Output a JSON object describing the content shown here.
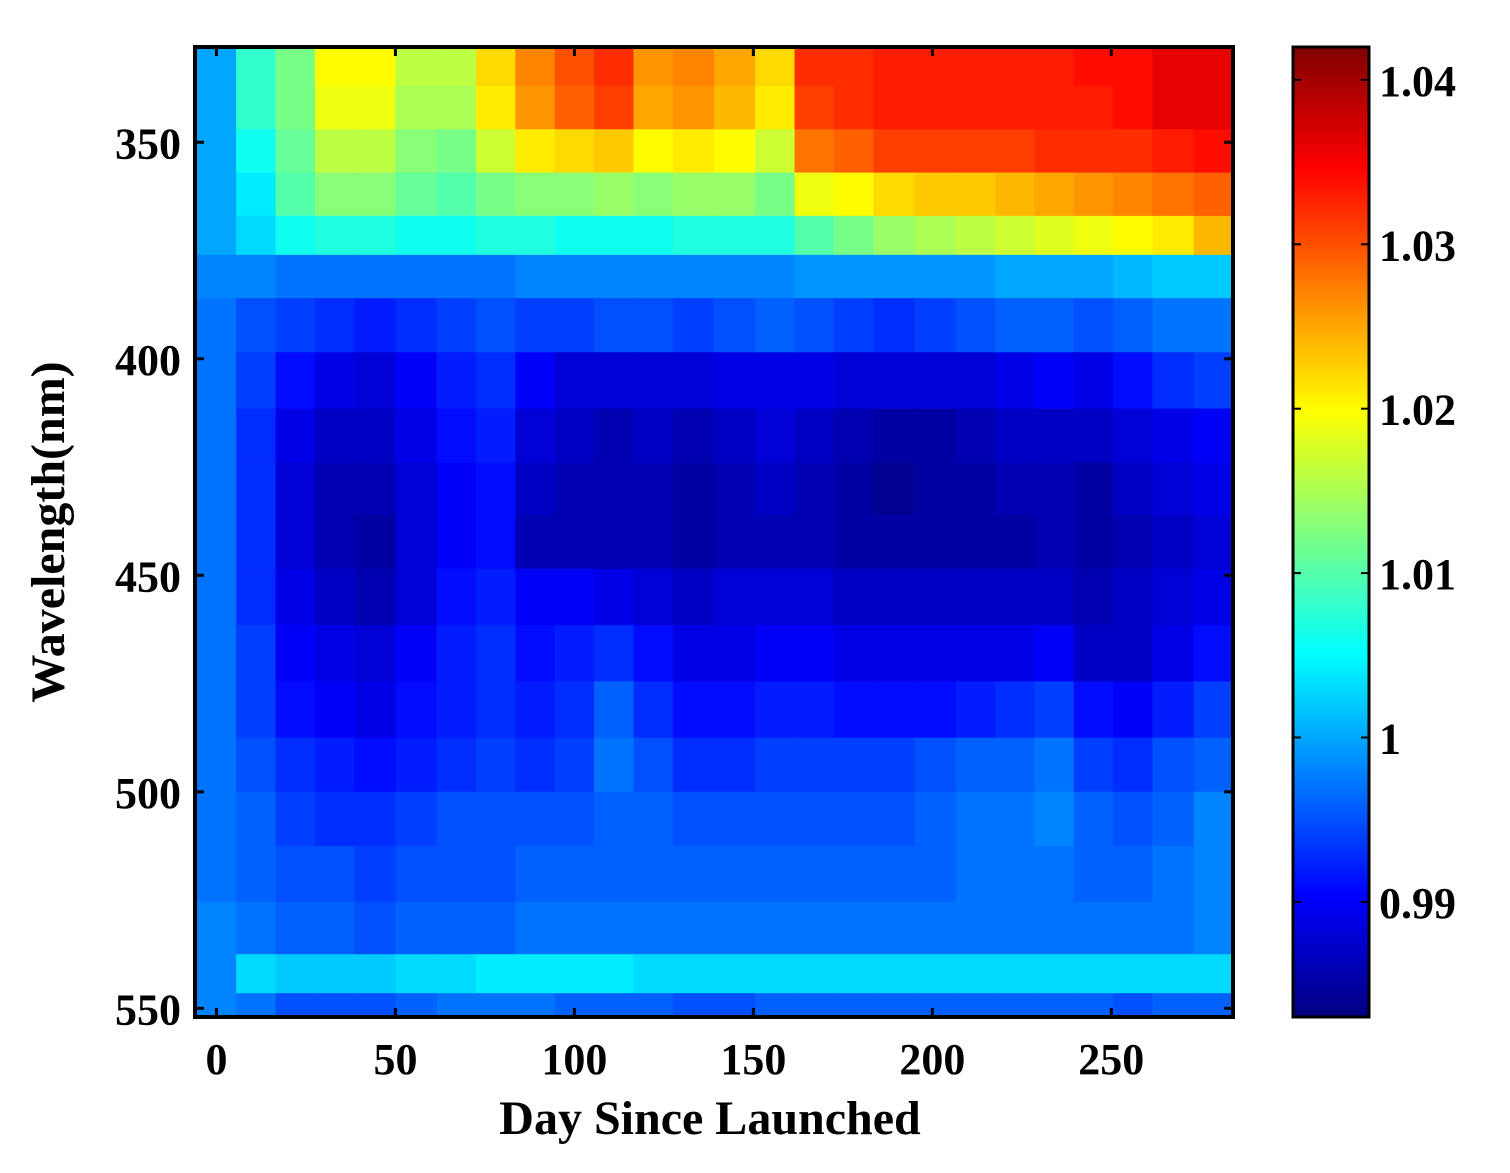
{
  "chart_data": {
    "type": "heatmap",
    "xlabel": "Day Since Launched",
    "ylabel": "Wavelength(nm)",
    "xlim": [
      -6,
      284
    ],
    "ylim": [
      328,
      552
    ],
    "y_reversed": true,
    "x_ticks": [
      0,
      50,
      100,
      150,
      200,
      250
    ],
    "x_tick_labels": [
      "0",
      "50",
      "100",
      "150",
      "200",
      "250"
    ],
    "y_ticks": [
      350,
      400,
      450,
      500,
      550
    ],
    "y_tick_labels": [
      "350",
      "400",
      "450",
      "500",
      "550"
    ],
    "colorbar": {
      "colormap": "jet",
      "range": [
        0.983,
        1.042
      ],
      "ticks": [
        0.99,
        1,
        1.01,
        1.02,
        1.03,
        1.04
      ],
      "tick_labels": [
        "0.99",
        "1",
        "1.01",
        "1.02",
        "1.03",
        "1.04"
      ]
    },
    "grid": false,
    "days": [
      0,
      11,
      22,
      33,
      44,
      56,
      67,
      78,
      89,
      100,
      111,
      122,
      133,
      145,
      156,
      167,
      178,
      189,
      201,
      212,
      223,
      234,
      245,
      256,
      267,
      279
    ],
    "wavelengths": [
      332,
      342,
      352,
      362,
      372,
      380,
      392,
      405,
      418,
      430,
      442,
      455,
      468,
      481,
      494,
      506,
      519,
      532,
      543,
      550
    ],
    "values": [
      [
        1.0,
        1.008,
        1.012,
        1.02,
        1.02,
        1.016,
        1.016,
        1.022,
        1.027,
        1.03,
        1.032,
        1.026,
        1.027,
        1.025,
        1.022,
        1.032,
        1.032,
        1.033,
        1.033,
        1.033,
        1.033,
        1.033,
        1.034,
        1.034,
        1.036,
        1.036
      ],
      [
        1.0,
        1.008,
        1.012,
        1.019,
        1.019,
        1.015,
        1.015,
        1.021,
        1.026,
        1.029,
        1.031,
        1.025,
        1.026,
        1.024,
        1.021,
        1.031,
        1.032,
        1.033,
        1.033,
        1.033,
        1.033,
        1.033,
        1.033,
        1.034,
        1.036,
        1.036
      ],
      [
        1.0,
        1.006,
        1.011,
        1.016,
        1.016,
        1.013,
        1.012,
        1.017,
        1.021,
        1.022,
        1.023,
        1.02,
        1.021,
        1.02,
        1.017,
        1.028,
        1.029,
        1.031,
        1.031,
        1.031,
        1.031,
        1.032,
        1.032,
        1.032,
        1.033,
        1.034
      ],
      [
        1.0,
        1.004,
        1.01,
        1.013,
        1.013,
        1.011,
        1.01,
        1.012,
        1.013,
        1.013,
        1.014,
        1.013,
        1.014,
        1.014,
        1.012,
        1.019,
        1.02,
        1.022,
        1.023,
        1.023,
        1.024,
        1.025,
        1.026,
        1.027,
        1.028,
        1.029
      ],
      [
        1.0,
        1.003,
        1.006,
        1.007,
        1.007,
        1.006,
        1.006,
        1.007,
        1.007,
        1.006,
        1.006,
        1.006,
        1.007,
        1.007,
        1.007,
        1.01,
        1.012,
        1.014,
        1.015,
        1.016,
        1.017,
        1.018,
        1.019,
        1.02,
        1.021,
        1.024
      ],
      [
        0.998,
        0.998,
        0.997,
        0.997,
        0.997,
        0.997,
        0.997,
        0.997,
        0.998,
        0.998,
        0.998,
        0.998,
        0.998,
        0.998,
        0.998,
        0.999,
        0.999,
        0.999,
        0.999,
        0.999,
        1.0,
        1.0,
        1.0,
        1.001,
        1.002,
        1.002
      ],
      [
        0.997,
        0.995,
        0.994,
        0.993,
        0.992,
        0.993,
        0.994,
        0.995,
        0.994,
        0.994,
        0.995,
        0.995,
        0.994,
        0.995,
        0.996,
        0.995,
        0.994,
        0.993,
        0.994,
        0.995,
        0.996,
        0.996,
        0.995,
        0.996,
        0.997,
        0.997
      ],
      [
        0.997,
        0.994,
        0.991,
        0.989,
        0.988,
        0.99,
        0.992,
        0.993,
        0.99,
        0.988,
        0.988,
        0.988,
        0.988,
        0.989,
        0.989,
        0.989,
        0.988,
        0.988,
        0.988,
        0.988,
        0.989,
        0.99,
        0.989,
        0.991,
        0.993,
        0.994
      ],
      [
        0.997,
        0.993,
        0.989,
        0.987,
        0.987,
        0.989,
        0.991,
        0.992,
        0.988,
        0.987,
        0.986,
        0.987,
        0.986,
        0.987,
        0.988,
        0.987,
        0.986,
        0.985,
        0.985,
        0.986,
        0.987,
        0.987,
        0.987,
        0.988,
        0.989,
        0.99
      ],
      [
        0.997,
        0.993,
        0.988,
        0.986,
        0.986,
        0.988,
        0.99,
        0.991,
        0.987,
        0.986,
        0.986,
        0.986,
        0.985,
        0.986,
        0.987,
        0.986,
        0.985,
        0.984,
        0.985,
        0.985,
        0.986,
        0.986,
        0.985,
        0.987,
        0.988,
        0.989
      ],
      [
        0.997,
        0.993,
        0.988,
        0.986,
        0.985,
        0.988,
        0.99,
        0.991,
        0.986,
        0.986,
        0.986,
        0.986,
        0.985,
        0.986,
        0.986,
        0.986,
        0.985,
        0.985,
        0.985,
        0.985,
        0.985,
        0.986,
        0.985,
        0.986,
        0.987,
        0.988
      ],
      [
        0.997,
        0.993,
        0.989,
        0.987,
        0.986,
        0.988,
        0.991,
        0.992,
        0.99,
        0.99,
        0.989,
        0.988,
        0.987,
        0.988,
        0.988,
        0.988,
        0.987,
        0.987,
        0.987,
        0.987,
        0.987,
        0.987,
        0.986,
        0.987,
        0.988,
        0.989
      ],
      [
        0.997,
        0.994,
        0.99,
        0.989,
        0.988,
        0.99,
        0.992,
        0.993,
        0.991,
        0.992,
        0.993,
        0.991,
        0.989,
        0.989,
        0.99,
        0.99,
        0.989,
        0.989,
        0.989,
        0.989,
        0.989,
        0.99,
        0.987,
        0.987,
        0.989,
        0.991
      ],
      [
        0.997,
        0.994,
        0.991,
        0.99,
        0.989,
        0.991,
        0.992,
        0.993,
        0.992,
        0.993,
        0.996,
        0.993,
        0.991,
        0.991,
        0.992,
        0.992,
        0.991,
        0.991,
        0.991,
        0.992,
        0.993,
        0.994,
        0.991,
        0.99,
        0.992,
        0.994
      ],
      [
        0.997,
        0.995,
        0.993,
        0.992,
        0.991,
        0.992,
        0.993,
        0.994,
        0.993,
        0.994,
        0.997,
        0.995,
        0.993,
        0.993,
        0.994,
        0.994,
        0.994,
        0.994,
        0.995,
        0.996,
        0.996,
        0.997,
        0.994,
        0.993,
        0.995,
        0.996
      ],
      [
        0.997,
        0.996,
        0.994,
        0.993,
        0.993,
        0.994,
        0.995,
        0.995,
        0.995,
        0.995,
        0.996,
        0.996,
        0.995,
        0.995,
        0.995,
        0.995,
        0.995,
        0.995,
        0.996,
        0.997,
        0.997,
        0.998,
        0.996,
        0.995,
        0.996,
        0.998
      ],
      [
        0.997,
        0.996,
        0.995,
        0.995,
        0.994,
        0.995,
        0.995,
        0.995,
        0.996,
        0.996,
        0.996,
        0.996,
        0.996,
        0.996,
        0.996,
        0.996,
        0.996,
        0.996,
        0.996,
        0.997,
        0.997,
        0.997,
        0.996,
        0.996,
        0.997,
        0.998
      ],
      [
        0.998,
        0.997,
        0.996,
        0.996,
        0.995,
        0.996,
        0.996,
        0.996,
        0.997,
        0.997,
        0.997,
        0.997,
        0.997,
        0.997,
        0.997,
        0.997,
        0.997,
        0.997,
        0.997,
        0.997,
        0.997,
        0.997,
        0.997,
        0.997,
        0.997,
        0.998
      ],
      [
        0.998,
        1.003,
        1.002,
        1.002,
        1.002,
        1.003,
        1.003,
        1.004,
        1.004,
        1.004,
        1.004,
        1.003,
        1.003,
        1.003,
        1.003,
        1.003,
        1.003,
        1.003,
        1.003,
        1.003,
        1.003,
        1.003,
        1.003,
        1.003,
        1.003,
        1.003
      ],
      [
        0.998,
        0.997,
        0.995,
        0.995,
        0.995,
        0.996,
        0.997,
        0.997,
        0.997,
        0.996,
        0.996,
        0.996,
        0.995,
        0.995,
        0.996,
        0.996,
        0.996,
        0.996,
        0.996,
        0.996,
        0.996,
        0.996,
        0.996,
        0.995,
        0.996,
        0.996
      ]
    ]
  }
}
